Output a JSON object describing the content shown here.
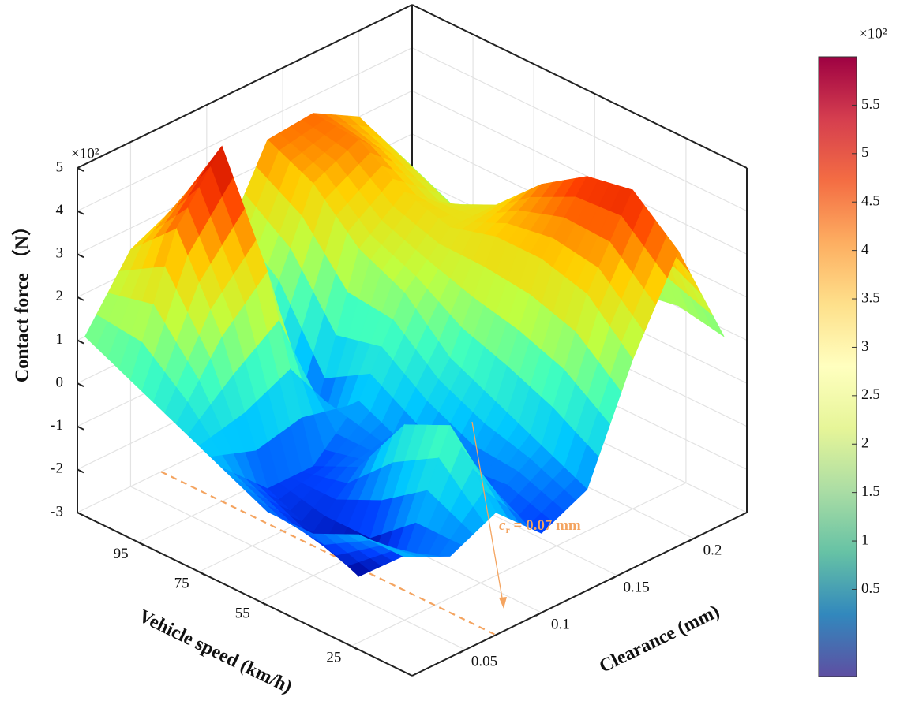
{
  "chart_data": {
    "type": "surface3d",
    "zlabel": "Contact force （N）",
    "xlabel": "Vehicle speed (km/h)",
    "ylabel": "Clearance (mm)",
    "z_multiplier": "×10²",
    "colorbar_multiplier": "×10²",
    "speed": [
      10,
      25,
      40,
      55,
      70,
      85,
      100,
      115
    ],
    "clearance": [
      0.02,
      0.05,
      0.08,
      0.11,
      0.14,
      0.17,
      0.2,
      0.23
    ],
    "z": [
      [
        -0.5,
        -1.0,
        -0.5,
        -1.5,
        -1.0,
        1.5,
        3.5,
        1.0
      ],
      [
        -0.5,
        -1.5,
        1.0,
        -1.2,
        -0.5,
        2.5,
        4.4,
        1.2
      ],
      [
        -1.0,
        -2.5,
        0.5,
        -1.5,
        0.0,
        2.8,
        4.2,
        1.0
      ],
      [
        -1.0,
        -2.0,
        -1.0,
        -1.0,
        0.5,
        2.8,
        3.5,
        0.8
      ],
      [
        -0.5,
        -1.5,
        -1.5,
        -0.5,
        1.5,
        2.5,
        2.5,
        0.5
      ],
      [
        0.0,
        1.5,
        2.5,
        -1.5,
        2.0,
        2.8,
        2.0,
        0.5
      ],
      [
        0.5,
        3.5,
        4.9,
        0.5,
        3.0,
        3.5,
        2.5,
        1.0
      ],
      [
        1.0,
        2.5,
        3.0,
        1.5,
        3.5,
        3.6,
        3.0,
        1.5
      ]
    ],
    "speed_lim": [
      5,
      115
    ],
    "speed_ticks": [
      25,
      55,
      75,
      95
    ],
    "clearance_lim": [
      0.015,
      0.235
    ],
    "clearance_ticks": [
      0.05,
      0.1,
      0.15,
      0.2
    ],
    "zlim": [
      -3,
      5
    ],
    "zticks": [
      -3,
      -2,
      -1,
      0,
      1,
      2,
      3,
      4,
      5
    ],
    "grid": true,
    "surface_clim": [
      -2.5,
      5
    ],
    "surface_colormap": [
      "#00008f",
      "#0040ff",
      "#00c8ff",
      "#40ffbf",
      "#c0ff40",
      "#ffd000",
      "#ff4000",
      "#c00000"
    ],
    "colorbar": {
      "lim": [
        -0.4,
        6
      ],
      "ticks": [
        0.5,
        1,
        1.5,
        2,
        2.5,
        3,
        3.5,
        4,
        4.5,
        5,
        5.5
      ],
      "colormap": [
        "#5e4fa2",
        "#3288bd",
        "#66c2a5",
        "#abdda4",
        "#e6f598",
        "#ffffbf",
        "#fee08b",
        "#fdae61",
        "#f46d43",
        "#d53e4f",
        "#9e0142"
      ]
    },
    "annotation": {
      "symbol": "c",
      "subscript": "r",
      "text": " = 0.07 mm",
      "clearance": 0.07,
      "color": "#f4a460"
    }
  }
}
